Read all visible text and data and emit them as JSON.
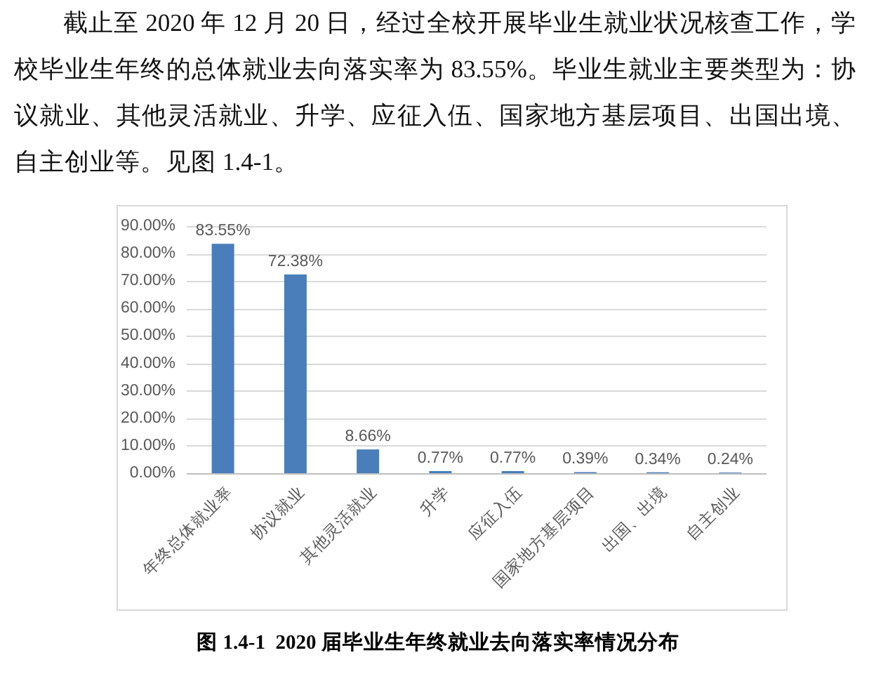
{
  "chart_data": {
    "type": "bar",
    "title": "图 1.4-1  2020 届毕业生年终就业去向落实率情况分布",
    "annotations": [
      "截止至 2020 年 12 月 20 日，经过全校开展毕业生就业状况核查工作，学校毕业生年终的总体就业去向落实率为 83.55%。毕业生就业主要类型为：协议就业、其他灵活就业、升学、应征入伍、国家地方基层项目、出国出境、自主创业等。见图 1.4-1。"
    ],
    "categories": [
      "年终总体就业率",
      "协议就业",
      "其他灵活就业",
      "升学",
      "应征入伍",
      "国家地方基层项目",
      "出国、出境",
      "自主创业"
    ],
    "values": [
      83.55,
      72.38,
      8.66,
      0.77,
      0.77,
      0.39,
      0.34,
      0.24
    ],
    "value_labels": [
      "83.55%",
      "72.38%",
      "8.66%",
      "0.77%",
      "0.77%",
      "0.39%",
      "0.34%",
      "0.24%"
    ],
    "color": "#4a7ebb",
    "ylim": [
      0,
      90
    ],
    "yticks": [
      {
        "value": 0,
        "label": "0.00%"
      },
      {
        "value": 10,
        "label": "10.00%"
      },
      {
        "value": 20,
        "label": "20.00%"
      },
      {
        "value": 30,
        "label": "30.00%"
      },
      {
        "value": 40,
        "label": "40.00%"
      },
      {
        "value": 50,
        "label": "50.00%"
      },
      {
        "value": 60,
        "label": "60.00%"
      },
      {
        "value": 70,
        "label": "70.00%"
      },
      {
        "value": 80,
        "label": "80.00%"
      },
      {
        "value": 90,
        "label": "90.00%"
      }
    ],
    "grid": "y"
  }
}
